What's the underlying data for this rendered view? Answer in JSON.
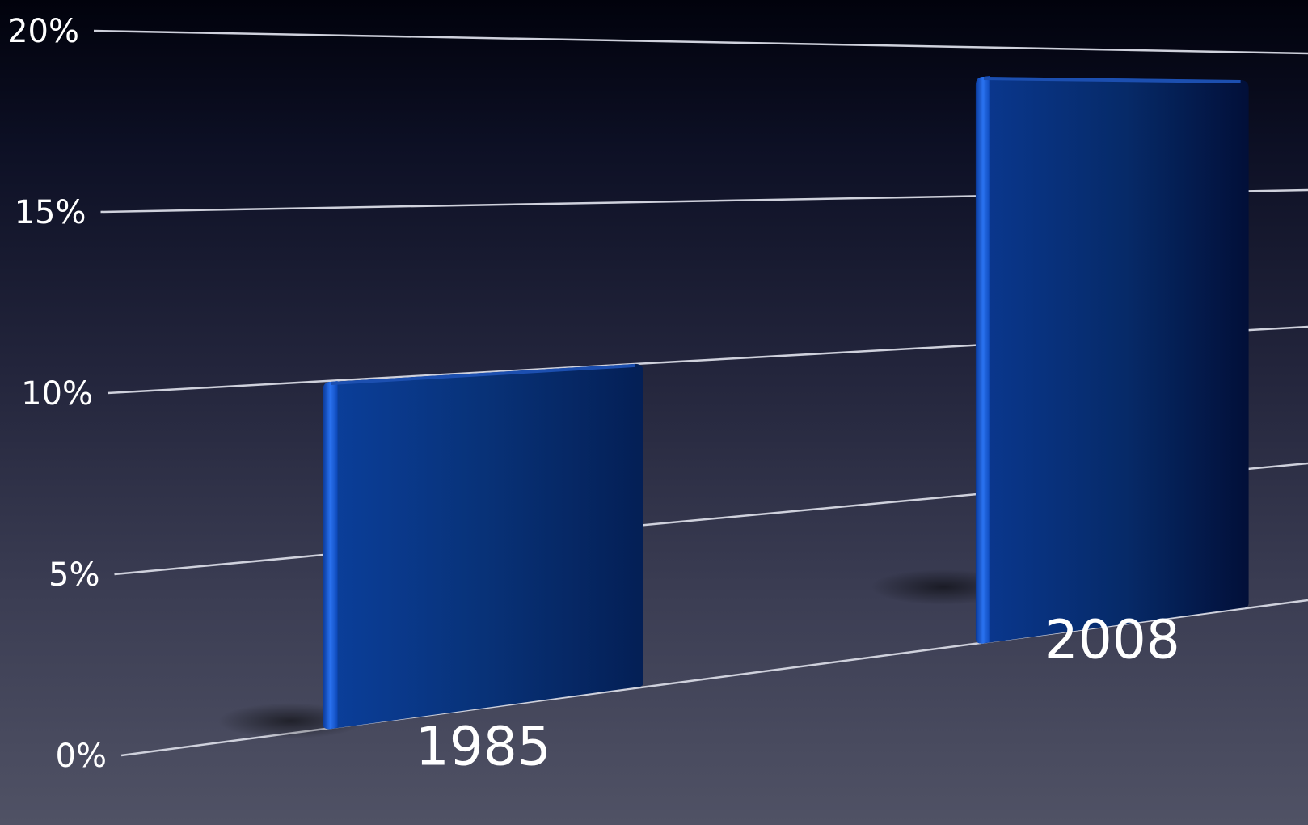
{
  "chart_data": {
    "type": "bar",
    "categories": [
      "1985",
      "2008"
    ],
    "values": [
      10,
      19
    ],
    "y_ticks": [
      "0%",
      "5%",
      "10%",
      "15%",
      "20%"
    ],
    "ylim": [
      0,
      20
    ],
    "title": "",
    "xlabel": "",
    "ylabel": "",
    "grid": true,
    "legend": "none",
    "colors": {
      "bar": "#0a3a8c",
      "bar_highlight": "#1f63e0",
      "bar_dark": "#021540",
      "grid": "#cfd1dc",
      "text": "#ffffff"
    }
  }
}
